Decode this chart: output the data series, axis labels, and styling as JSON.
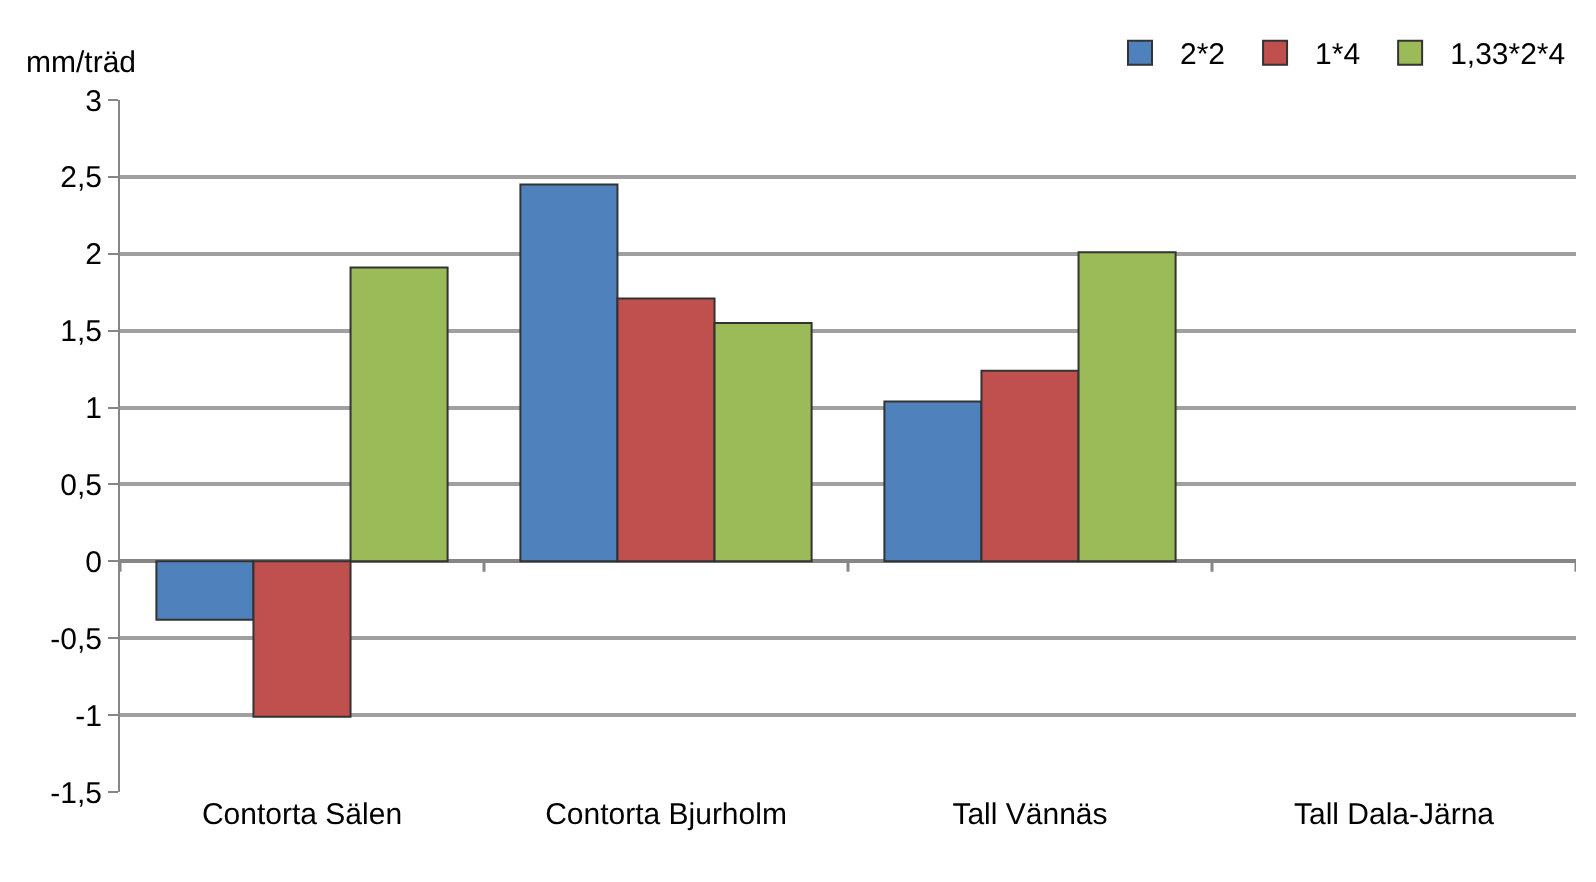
{
  "chart_data": {
    "type": "bar",
    "ylabel": "mm/träd",
    "categories": [
      "Contorta Sälen",
      "Contorta Bjurholm",
      "Tall Vännäs",
      "Tall Dala-Järna"
    ],
    "series": [
      {
        "name": "2*2",
        "color": "#4f81bd",
        "values": [
          -0.38,
          2.45,
          1.04,
          null
        ]
      },
      {
        "name": "1*4",
        "color": "#c0504d",
        "values": [
          -1.01,
          1.71,
          1.24,
          null
        ]
      },
      {
        "name": "1,33*2*4",
        "color": "#9bbb59",
        "values": [
          1.91,
          1.55,
          2.01,
          null
        ]
      }
    ],
    "ylim": [
      -1.5,
      3
    ],
    "yticks": [
      {
        "value": -1.5,
        "label": "-1,5"
      },
      -1,
      {
        "value": -0.5,
        "label": "-0,5"
      },
      0,
      {
        "value": 0.5,
        "label": "0,5"
      },
      1,
      {
        "value": 1.5,
        "label": "1,5"
      },
      2,
      {
        "value": 2.5,
        "label": "2,5"
      },
      3
    ],
    "grid": "y",
    "legend": "top right"
  }
}
